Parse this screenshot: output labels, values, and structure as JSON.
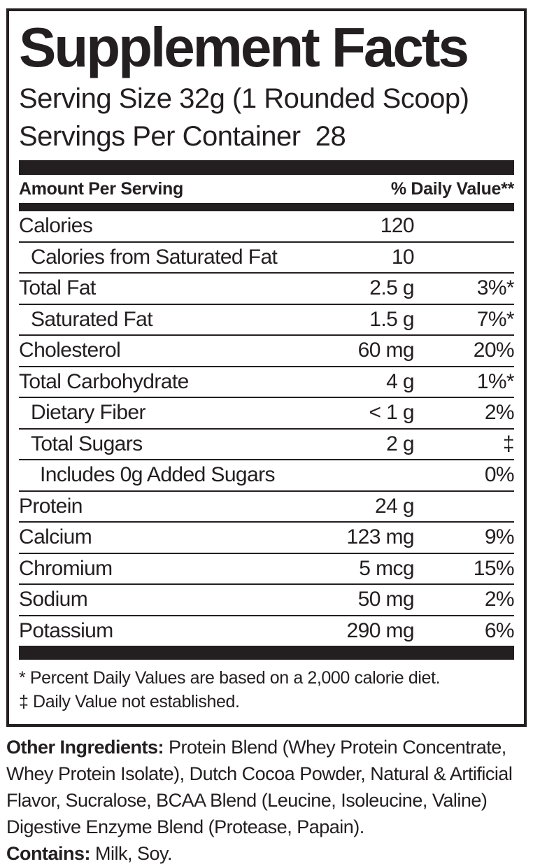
{
  "colors": {
    "ink": "#231f20",
    "background": "#ffffff"
  },
  "header": {
    "title": "Supplement Facts",
    "serving_size": "Serving Size 32g (1 Rounded Scoop)",
    "servings_per_container": "Servings Per Container  28"
  },
  "table": {
    "amount_header": "Amount Per Serving",
    "dv_header": "% Daily Value**",
    "rows": [
      {
        "name": "Calories",
        "amount": "120",
        "dv": "",
        "indent": 0
      },
      {
        "name": "Calories from Saturated Fat",
        "amount": "10",
        "dv": "",
        "indent": 1
      },
      {
        "name": "Total Fat",
        "amount": "2.5 g",
        "dv": "3%*",
        "indent": 0
      },
      {
        "name": "Saturated Fat",
        "amount": "1.5 g",
        "dv": "7%*",
        "indent": 1
      },
      {
        "name": "Cholesterol",
        "amount": "60 mg",
        "dv": "20%",
        "indent": 0
      },
      {
        "name": "Total Carbohydrate",
        "amount": "4 g",
        "dv": "1%*",
        "indent": 0
      },
      {
        "name": "Dietary Fiber",
        "amount": "< 1 g",
        "dv": "2%",
        "indent": 1
      },
      {
        "name": "Total Sugars",
        "amount": "2 g",
        "dv": "‡",
        "indent": 1
      },
      {
        "name": "Includes 0g Added Sugars",
        "amount": "",
        "dv": "0%",
        "indent": 2
      },
      {
        "name": "Protein",
        "amount": "24 g",
        "dv": "",
        "indent": 0
      },
      {
        "name": "Calcium",
        "amount": "123 mg",
        "dv": "9%",
        "indent": 0
      },
      {
        "name": "Chromium",
        "amount": "5 mcg",
        "dv": "15%",
        "indent": 0
      },
      {
        "name": "Sodium",
        "amount": "50 mg",
        "dv": "2%",
        "indent": 0
      },
      {
        "name": "Potassium",
        "amount": "290 mg",
        "dv": "6%",
        "indent": 0
      }
    ]
  },
  "footnotes": [
    "* Percent Daily Values are based on a 2,000 calorie diet.",
    "‡ Daily Value not established."
  ],
  "other_ingredients": {
    "label": "Other Ingredients:",
    "text": " Protein Blend (Whey Protein Concentrate, Whey Protein Isolate), Dutch Cocoa Powder, Natural & Artificial Flavor, Sucralose, BCAA Blend (Leucine, Isoleucine, Valine) Digestive Enzyme Blend (Protease, Papain)."
  },
  "contains": {
    "label": "Contains:",
    "text": " Milk, Soy."
  }
}
